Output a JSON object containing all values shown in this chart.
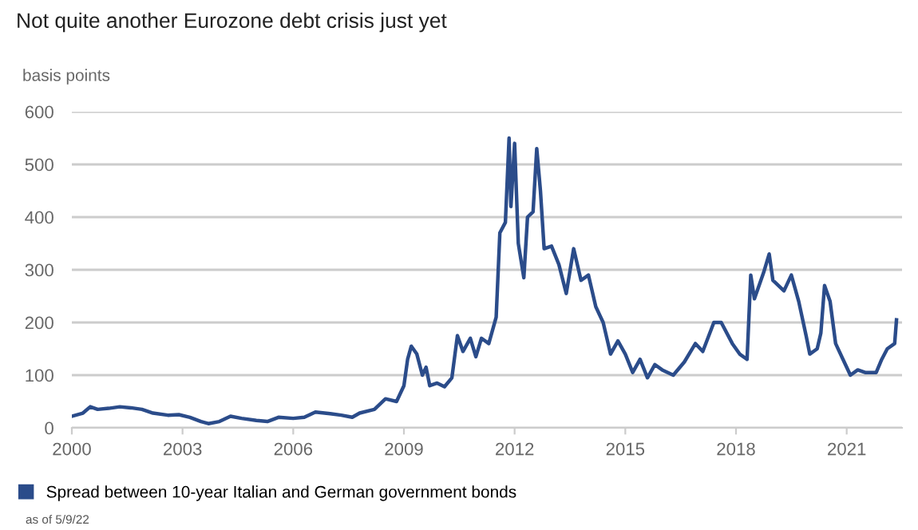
{
  "chart_data": {
    "type": "line",
    "title": "Not quite another Eurozone debt crisis just yet",
    "ylabel": "basis points",
    "x": [
      2000.0,
      2000.3,
      2000.5,
      2000.7,
      2001.0,
      2001.3,
      2001.6,
      2001.9,
      2002.2,
      2002.6,
      2002.9,
      2003.2,
      2003.5,
      2003.7,
      2004.0,
      2004.3,
      2004.6,
      2005.0,
      2005.3,
      2005.6,
      2006.0,
      2006.3,
      2006.6,
      2007.0,
      2007.3,
      2007.6,
      2007.8,
      2008.2,
      2008.5,
      2008.8,
      2009.0,
      2009.1,
      2009.2,
      2009.35,
      2009.5,
      2009.6,
      2009.7,
      2009.9,
      2010.1,
      2010.3,
      2010.45,
      2010.6,
      2010.8,
      2010.95,
      2011.1,
      2011.3,
      2011.5,
      2011.6,
      2011.75,
      2011.85,
      2011.9,
      2012.0,
      2012.1,
      2012.25,
      2012.35,
      2012.5,
      2012.6,
      2012.7,
      2012.8,
      2013.0,
      2013.2,
      2013.4,
      2013.6,
      2013.8,
      2014.0,
      2014.2,
      2014.4,
      2014.6,
      2014.8,
      2015.0,
      2015.2,
      2015.4,
      2015.6,
      2015.8,
      2016.0,
      2016.3,
      2016.6,
      2016.9,
      2017.1,
      2017.4,
      2017.6,
      2017.9,
      2018.1,
      2018.3,
      2018.4,
      2018.5,
      2018.75,
      2018.9,
      2019.0,
      2019.3,
      2019.5,
      2019.7,
      2019.9,
      2020.0,
      2020.2,
      2020.3,
      2020.4,
      2020.55,
      2020.7,
      2020.9,
      2021.1,
      2021.3,
      2021.5,
      2021.8,
      2021.95,
      2022.1,
      2022.3,
      2022.35
    ],
    "series": [
      {
        "name": "Spread between 10-year Italian and German government bonds",
        "color": "#2b4c8a",
        "values": [
          22,
          28,
          40,
          35,
          37,
          40,
          38,
          35,
          28,
          24,
          25,
          20,
          12,
          8,
          12,
          22,
          18,
          14,
          12,
          20,
          18,
          20,
          30,
          27,
          24,
          20,
          28,
          35,
          55,
          50,
          80,
          130,
          155,
          140,
          100,
          115,
          80,
          85,
          78,
          95,
          175,
          145,
          170,
          135,
          170,
          160,
          210,
          370,
          390,
          550,
          420,
          540,
          350,
          285,
          400,
          410,
          530,
          450,
          340,
          345,
          310,
          255,
          340,
          280,
          290,
          230,
          200,
          140,
          165,
          140,
          105,
          130,
          95,
          120,
          110,
          100,
          125,
          160,
          145,
          200,
          200,
          160,
          140,
          130,
          290,
          245,
          295,
          330,
          280,
          260,
          290,
          240,
          175,
          140,
          150,
          180,
          270,
          240,
          160,
          130,
          100,
          110,
          105,
          105,
          130,
          150,
          160,
          205
        ]
      }
    ],
    "xlim": [
      2000,
      2022.5
    ],
    "xticks": [
      2000,
      2003,
      2006,
      2009,
      2012,
      2015,
      2018,
      2021
    ],
    "ylim": [
      0,
      600
    ],
    "yticks": [
      0,
      100,
      200,
      300,
      400,
      500,
      600
    ],
    "grid": "y",
    "legend": "bottom",
    "marker": "none",
    "line_style": "solid",
    "annotations": [
      "as of 5/9/22"
    ]
  }
}
